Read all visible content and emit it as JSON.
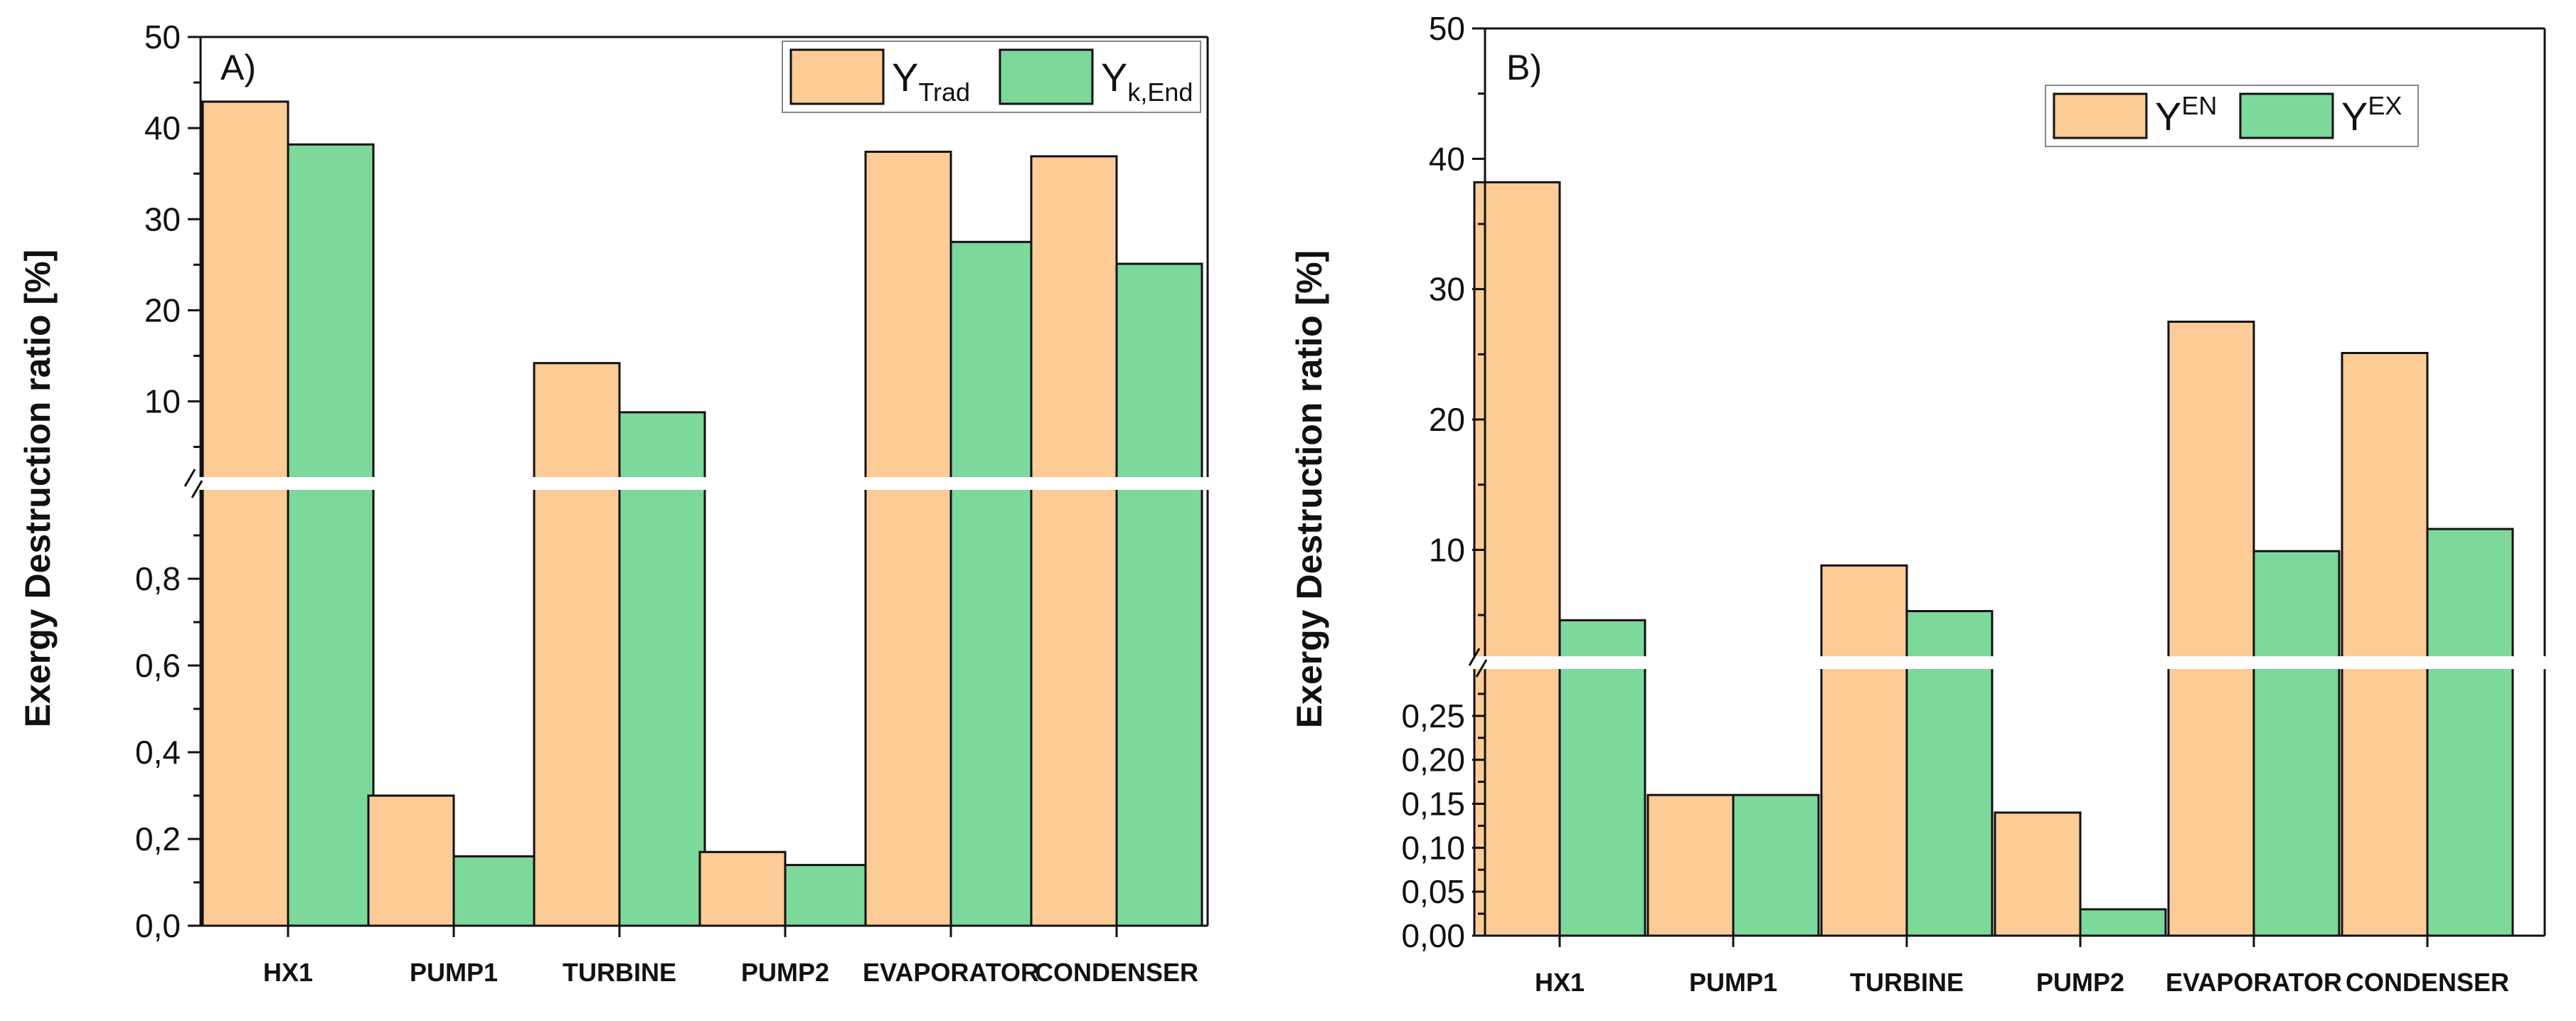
{
  "chart_data": [
    {
      "type": "bar",
      "panel_label": "A)",
      "ylabel": "Exergy Destruction  ratio [%]",
      "categories": [
        "HX1",
        "PUMP1",
        "TURBINE",
        "PUMP2",
        "EVAPORATOR",
        "CONDENSER"
      ],
      "series": [
        {
          "name": "Y",
          "name_sub": "Trad",
          "name_sup": "",
          "color": "#FDCB96",
          "values": [
            42.9,
            0.3,
            14.2,
            0.17,
            37.4,
            36.9
          ]
        },
        {
          "name": "Y",
          "name_sub": "k,End",
          "name_sup": "",
          "color": "#7DD89B",
          "values": [
            38.2,
            0.16,
            8.8,
            0.14,
            27.5,
            25.1
          ]
        }
      ],
      "axis_break": true,
      "lower_axis": {
        "ylim": [
          0,
          1.0
        ],
        "ticks": [
          0.0,
          0.2,
          0.4,
          0.6,
          0.8
        ],
        "tick_labels": [
          "0,0",
          "0,2",
          "0,4",
          "0,6",
          "0,8"
        ]
      },
      "upper_axis": {
        "ylim": [
          2,
          50
        ],
        "ticks": [
          10,
          20,
          30,
          40,
          50
        ],
        "tick_labels": [
          "10",
          "20",
          "30",
          "40",
          "50"
        ]
      },
      "legend_position": "top-right",
      "grid": false,
      "edge_color": "#111111"
    },
    {
      "type": "bar",
      "panel_label": "B)",
      "ylabel": "Exergy Destruction  ratio [%]",
      "categories": [
        "HX1",
        "PUMP1",
        "TURBINE",
        "PUMP2",
        "EVAPORATOR",
        "CONDENSER"
      ],
      "series": [
        {
          "name": "Y",
          "name_sub": "",
          "name_sup": "EN",
          "color": "#FDCB96",
          "values": [
            38.2,
            0.16,
            8.8,
            0.14,
            27.5,
            25.1
          ]
        },
        {
          "name": "Y",
          "name_sub": "",
          "name_sup": "EX",
          "color": "#7DD89B",
          "values": [
            4.6,
            0.16,
            5.3,
            0.03,
            9.9,
            11.6
          ]
        }
      ],
      "axis_break": true,
      "lower_axis": {
        "ylim": [
          0,
          0.3
        ],
        "ticks": [
          0.0,
          0.05,
          0.1,
          0.15,
          0.2,
          0.25
        ],
        "tick_labels": [
          "0,00",
          "0,05",
          "0,10",
          "0,15",
          "0,20",
          "0,25"
        ]
      },
      "upper_axis": {
        "ylim": [
          2,
          50
        ],
        "ticks": [
          10,
          20,
          30,
          40,
          50
        ],
        "tick_labels": [
          "10",
          "20",
          "30",
          "40",
          "50"
        ]
      },
      "legend_position": "top-right",
      "grid": false,
      "edge_color": "#111111"
    }
  ]
}
